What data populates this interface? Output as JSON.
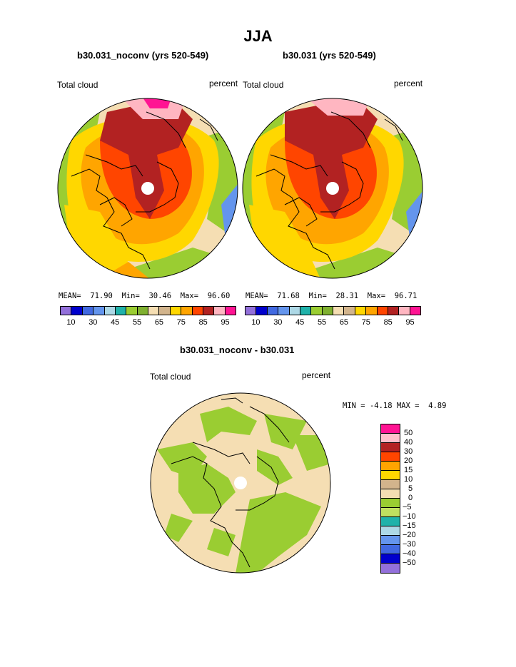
{
  "page": {
    "season": "JJA"
  },
  "panels": [
    {
      "case_title": "b30.031_noconv (yrs 520-549)",
      "left_label": "Total cloud",
      "right_label": "percent",
      "stats": {
        "mean_label": "MEAN=",
        "mean": "71.90",
        "min_label": "Min=",
        "min": "30.46",
        "max_label": "Max=",
        "max": "96.60"
      }
    },
    {
      "case_title": "b30.031 (yrs 520-549)",
      "left_label": "Total cloud",
      "right_label": "percent",
      "stats": {
        "mean_label": "MEAN=",
        "mean": "71.68",
        "min_label": "Min=",
        "min": "28.31",
        "max_label": "Max=",
        "max": "96.71"
      }
    }
  ],
  "colorbar": {
    "colors": [
      "#9370db",
      "#0000cd",
      "#4169e1",
      "#6495ed",
      "#add8e6",
      "#20b2aa",
      "#9acd32",
      "#7fb030",
      "#f5deb3",
      "#d2b48c",
      "#ffd700",
      "#ffa500",
      "#ff4500",
      "#b22222",
      "#ffb6c1",
      "#ff1493"
    ],
    "tick_labels": [
      "10",
      "30",
      "45",
      "55",
      "65",
      "75",
      "85",
      "95"
    ]
  },
  "diff_panel": {
    "title": "b30.031_noconv - b30.031",
    "left_label": "Total cloud",
    "right_label": "percent",
    "min_label": "MIN =",
    "min": "-4.18",
    "max_label": "MAX =",
    "max": "4.89"
  },
  "diff_colorbar": {
    "colors": [
      "#ff1493",
      "#ffc0cb",
      "#b22222",
      "#ff4500",
      "#ffa500",
      "#ffd700",
      "#d2b48c",
      "#f5deb3",
      "#9acd32",
      "#c0e060",
      "#20b2aa",
      "#add8e6",
      "#6495ed",
      "#4169e1",
      "#0000cd",
      "#9370db"
    ],
    "labels": [
      "50",
      "40",
      "30",
      "20",
      "15",
      "10",
      "5",
      "0",
      "-5",
      "-10",
      "-15",
      "-20",
      "-30",
      "-40",
      "-50"
    ]
  }
}
